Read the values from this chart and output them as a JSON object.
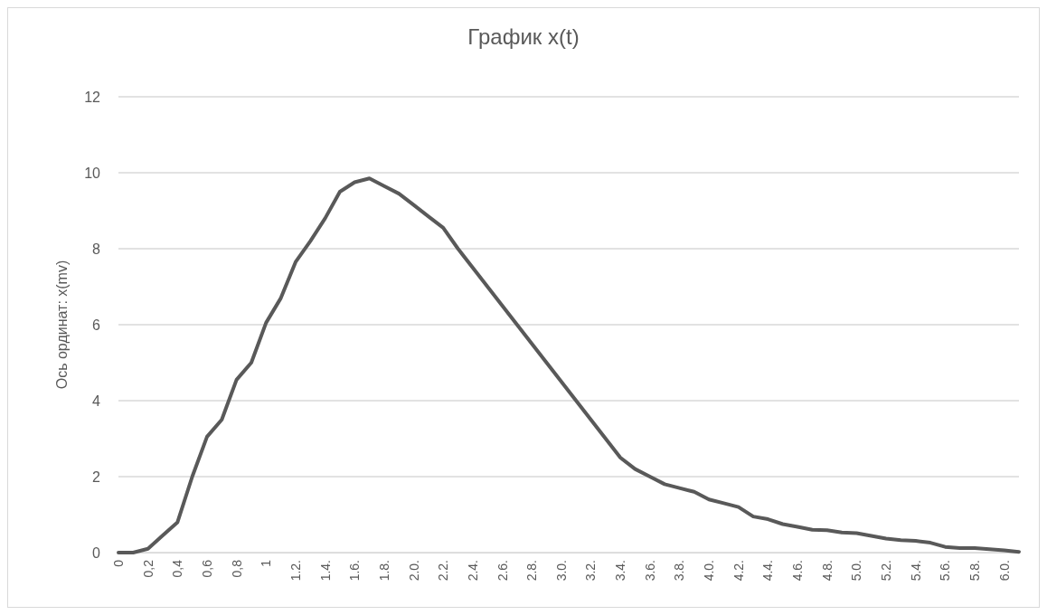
{
  "chart_data": {
    "type": "line",
    "title": "График x(t)",
    "ylabel": "Ось ординат: x(mv)",
    "categories": [
      "0",
      null,
      "0,2",
      null,
      "0,4",
      null,
      "0,6",
      null,
      "0,8",
      null,
      "1",
      null,
      "1.2.",
      null,
      "1.4.",
      null,
      "1.6.",
      null,
      "1.8.",
      null,
      "2.0.",
      null,
      "2.2.",
      null,
      "2.4.",
      null,
      "2.6.",
      null,
      "2.8.",
      null,
      "3.0.",
      null,
      "3.2.",
      null,
      "3.4.",
      null,
      "3.6.",
      null,
      "3.8.",
      null,
      "4.0.",
      null,
      "4.2.",
      null,
      "4.4.",
      null,
      "4.6.",
      null,
      "4.8.",
      null,
      "5.0.",
      null,
      "5.2.",
      null,
      "5.4.",
      null,
      "5.6.",
      null,
      "5.8.",
      null,
      "6.0.",
      null
    ],
    "series": [
      {
        "color": "#595959",
        "values": [
          0,
          0,
          0.1,
          0.45,
          0.8,
          2.0,
          3.05,
          3.5,
          4.55,
          5.0,
          6.05,
          6.7,
          7.65,
          8.2,
          8.8,
          9.5,
          9.75,
          9.85,
          9.65,
          9.45,
          9.15,
          8.85,
          8.55,
          8.0,
          7.5,
          7.0,
          6.5,
          6.0,
          5.5,
          5.0,
          4.5,
          4.0,
          3.5,
          3.0,
          2.5,
          2.2,
          2.0,
          1.8,
          1.7,
          1.6,
          1.4,
          1.3,
          1.2,
          0.95,
          0.88,
          0.75,
          0.68,
          0.6,
          0.59,
          0.53,
          0.51,
          0.44,
          0.37,
          0.33,
          0.31,
          0.26,
          0.15,
          0.12,
          0.12,
          0.09,
          0.06,
          0.02
        ]
      }
    ],
    "ylim": [
      0,
      12
    ],
    "yticks": [
      0,
      2,
      4,
      6,
      8,
      10,
      12
    ],
    "grid": "y",
    "marker": "none",
    "line_style": "solid"
  }
}
